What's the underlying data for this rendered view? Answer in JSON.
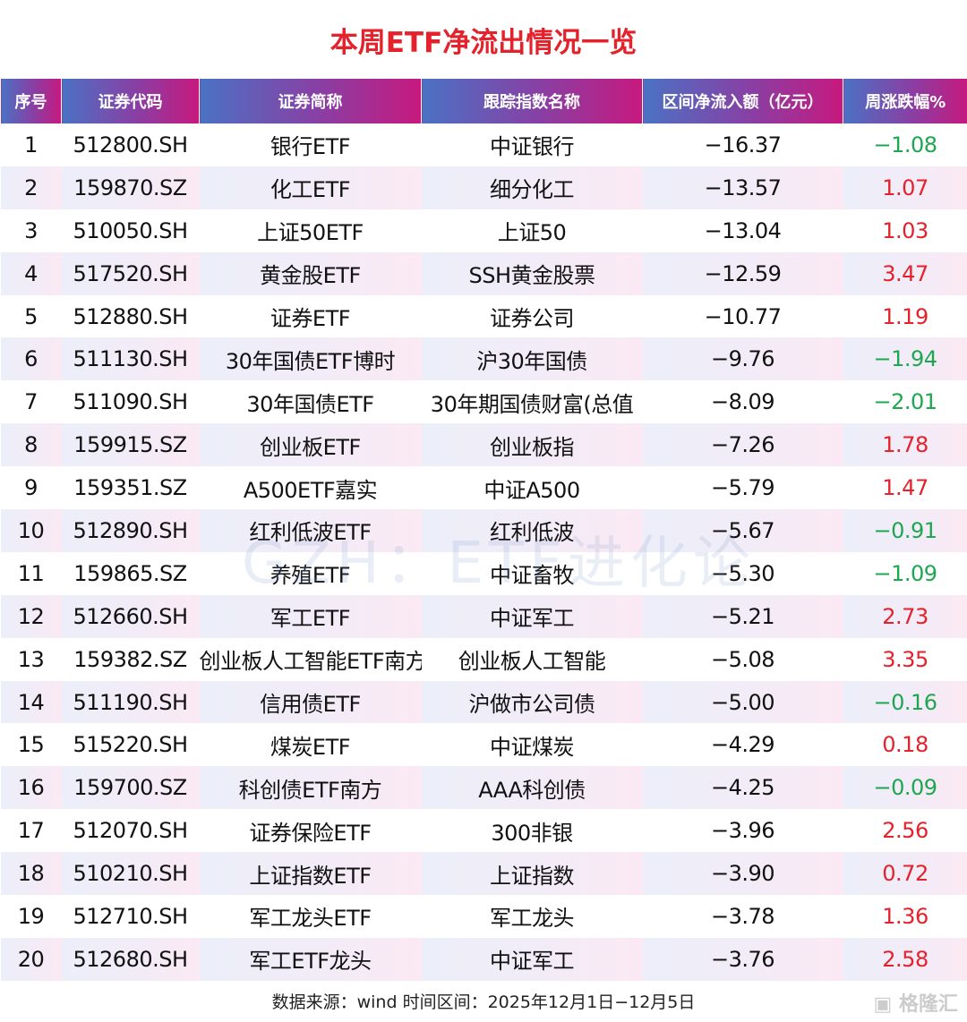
{
  "title": "本周ETF净流出情况一览",
  "headers": [
    "序号",
    "证券代码",
    "证券简称",
    "跟踪指数名称",
    "区间净流入额（亿元）",
    "周涨跌幅%"
  ],
  "rows": [
    [
      "1",
      "512800.SH",
      "银行ETF",
      "中证银行",
      "−16.37",
      "−1.08"
    ],
    [
      "2",
      "159870.SZ",
      "化工ETF",
      "细分化工",
      "−13.57",
      "1.07"
    ],
    [
      "3",
      "510050.SH",
      "上证50ETF",
      "上证50",
      "−13.04",
      "1.03"
    ],
    [
      "4",
      "517520.SH",
      "黄金股ETF",
      "SSH黄金股票",
      "−12.59",
      "3.47"
    ],
    [
      "5",
      "512880.SH",
      "证券ETF",
      "证券公司",
      "−10.77",
      "1.19"
    ],
    [
      "6",
      "511130.SH",
      "30年国债ETF博时",
      "沪30年国债",
      "−9.76",
      "−1.94"
    ],
    [
      "7",
      "511090.SH",
      "30年国债ETF",
      "30年期国债财富(总值",
      "−8.09",
      "−2.01"
    ],
    [
      "8",
      "159915.SZ",
      "创业板ETF",
      "创业板指",
      "−7.26",
      "1.78"
    ],
    [
      "9",
      "159351.SZ",
      "A500ETF嘉实",
      "中证A500",
      "−5.79",
      "1.47"
    ],
    [
      "10",
      "512890.SH",
      "红利低波ETF",
      "红利低波",
      "−5.67",
      "−0.91"
    ],
    [
      "11",
      "159865.SZ",
      "养殖ETF",
      "中证畜牧",
      "−5.30",
      "−1.09"
    ],
    [
      "12",
      "512660.SH",
      "军工ETF",
      "中证军工",
      "−5.21",
      "2.73"
    ],
    [
      "13",
      "159382.SZ",
      "创业板人工智能ETF南方",
      "创业板人工智能",
      "−5.08",
      "3.35"
    ],
    [
      "14",
      "511190.SH",
      "信用债ETF",
      "沪做市公司债",
      "−5.00",
      "−0.16"
    ],
    [
      "15",
      "515220.SH",
      "煤炭ETF",
      "中证煤炭",
      "−4.29",
      "0.18"
    ],
    [
      "16",
      "159700.SZ",
      "科创债ETF南方",
      "AAA科创债",
      "−4.25",
      "−0.09"
    ],
    [
      "17",
      "512070.SH",
      "证券保险ETF",
      "300非银",
      "−3.96",
      "2.56"
    ],
    [
      "18",
      "510210.SH",
      "上证指数ETF",
      "上证指数",
      "−3.90",
      "0.72"
    ],
    [
      "19",
      "512710.SH",
      "军工龙头ETF",
      "军工龙头",
      "−3.78",
      "1.36"
    ],
    [
      "20",
      "512680.SH",
      "军工ETF龙头",
      "中证军工",
      "−3.76",
      "2.58"
    ]
  ],
  "watermark": "GZH：ETF进化论",
  "footer": "数据来源：wind 时间区间：2025年12月1日−12月5日",
  "logo": "格隆汇",
  "colors": {
    "title": "#e3222b",
    "up": "#e3222b",
    "down": "#1fa650"
  }
}
